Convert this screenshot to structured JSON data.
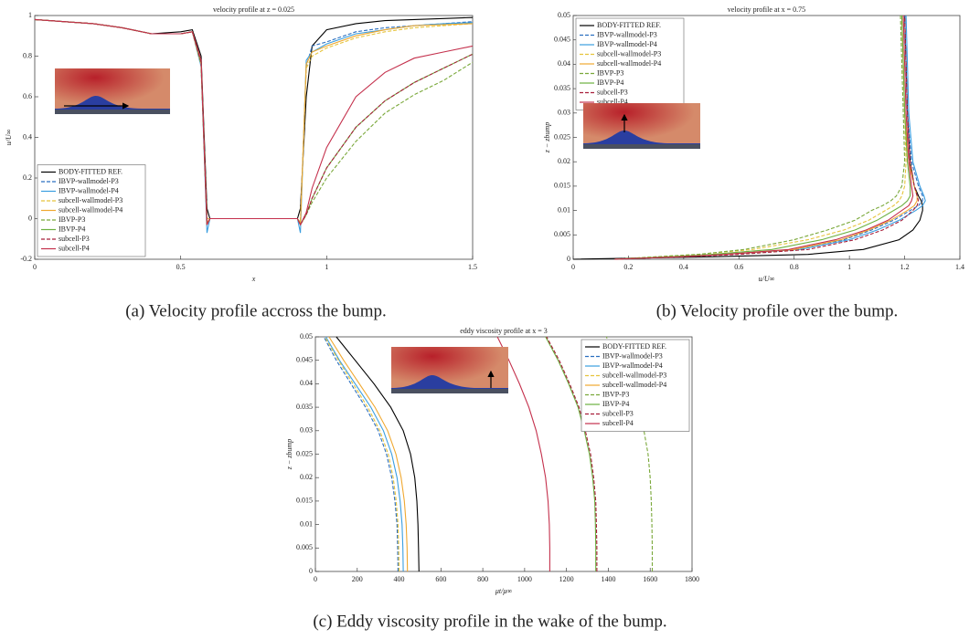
{
  "chart_data": [
    {
      "type": "line",
      "title": "velocity profile at z = 0.025",
      "caption": "(a) Velocity profile accross the bump.",
      "x_label": "x",
      "y_label": "u/U∞",
      "xlim": [
        0,
        1.5
      ],
      "xticks": [
        0,
        0.5,
        1,
        1.5
      ],
      "ylim": [
        -0.2,
        1
      ],
      "yticks": [
        -0.2,
        0,
        0.2,
        0.4,
        0.6,
        0.8,
        1
      ],
      "legend": "lower left",
      "x": [
        0,
        0.1,
        0.2,
        0.3,
        0.4,
        0.5,
        0.54,
        0.57,
        0.59,
        0.6,
        0.7,
        0.8,
        0.9,
        0.91,
        0.93,
        0.95,
        1.0,
        1.1,
        1.2,
        1.3,
        1.4,
        1.5
      ],
      "series": [
        {
          "name": "BODY-FITTED REF.",
          "color": "#000000",
          "dash": false,
          "values": [
            0.98,
            0.97,
            0.96,
            0.94,
            0.91,
            0.92,
            0.93,
            0.8,
            0.05,
            0,
            0,
            0,
            0,
            0.05,
            0.6,
            0.85,
            0.93,
            0.96,
            0.975,
            0.98,
            0.985,
            0.99
          ]
        },
        {
          "name": "IBVP-wallmodel-P3",
          "color": "#2b6fc0",
          "dash": true,
          "values": [
            0.98,
            0.97,
            0.96,
            0.94,
            0.91,
            0.91,
            0.92,
            0.75,
            0,
            0,
            0,
            0,
            0,
            -0.02,
            0.75,
            0.85,
            0.87,
            0.92,
            0.94,
            0.95,
            0.96,
            0.97
          ]
        },
        {
          "name": "IBVP-wallmodel-P4",
          "color": "#3a9ee0",
          "dash": false,
          "values": [
            0.98,
            0.97,
            0.96,
            0.94,
            0.91,
            0.91,
            0.92,
            0.75,
            -0.07,
            0,
            0,
            0,
            0,
            -0.07,
            0.78,
            0.82,
            0.86,
            0.91,
            0.93,
            0.95,
            0.96,
            0.965
          ]
        },
        {
          "name": "subcell-wallmodel-P3",
          "color": "#e6c43c",
          "dash": true,
          "values": [
            0.98,
            0.97,
            0.96,
            0.94,
            0.91,
            0.91,
            0.92,
            0.76,
            0,
            0,
            0,
            0,
            0,
            -0.02,
            0.74,
            0.8,
            0.84,
            0.89,
            0.92,
            0.94,
            0.95,
            0.96
          ]
        },
        {
          "name": "subcell-wallmodel-P4",
          "color": "#f0a830",
          "dash": false,
          "values": [
            0.98,
            0.97,
            0.96,
            0.94,
            0.91,
            0.91,
            0.92,
            0.76,
            -0.02,
            0,
            0,
            0,
            0,
            -0.03,
            0.76,
            0.82,
            0.85,
            0.9,
            0.93,
            0.95,
            0.955,
            0.96
          ]
        },
        {
          "name": "IBVP-P3",
          "color": "#7aa83a",
          "dash": true,
          "values": [
            0.98,
            0.97,
            0.96,
            0.94,
            0.91,
            0.91,
            0.92,
            0.76,
            -0.03,
            0,
            0,
            0,
            0,
            -0.03,
            0.02,
            0.08,
            0.2,
            0.38,
            0.52,
            0.61,
            0.68,
            0.77
          ]
        },
        {
          "name": "IBVP-P4",
          "color": "#6cb040",
          "dash": false,
          "values": [
            0.98,
            0.97,
            0.96,
            0.94,
            0.91,
            0.91,
            0.92,
            0.77,
            -0.03,
            0,
            0,
            0,
            0,
            -0.03,
            0.02,
            0.1,
            0.25,
            0.45,
            0.58,
            0.67,
            0.74,
            0.81
          ]
        },
        {
          "name": "subcell-P3",
          "color": "#a81e3a",
          "dash": true,
          "values": [
            0.98,
            0.97,
            0.96,
            0.94,
            0.91,
            0.91,
            0.92,
            0.77,
            -0.03,
            0,
            0,
            0,
            0,
            -0.03,
            0.02,
            0.1,
            0.25,
            0.45,
            0.58,
            0.67,
            0.74,
            0.81
          ]
        },
        {
          "name": "subcell-P4",
          "color": "#c4304c",
          "dash": false,
          "values": [
            0.98,
            0.97,
            0.96,
            0.94,
            0.91,
            0.91,
            0.92,
            0.78,
            -0.03,
            0,
            0,
            0,
            0,
            -0.03,
            0.03,
            0.15,
            0.35,
            0.6,
            0.72,
            0.79,
            0.82,
            0.85
          ]
        }
      ]
    },
    {
      "type": "line",
      "title": "velocity profile at x = 0.75",
      "caption": "(b) Velocity profile over the bump.",
      "x_label": "u/U∞",
      "y_label": "z − zbump",
      "xlim": [
        0,
        1.4
      ],
      "xticks": [
        0,
        0.2,
        0.4,
        0.6,
        0.8,
        1,
        1.2,
        1.4
      ],
      "ylim": [
        0,
        0.05
      ],
      "yticks": [
        0,
        0.005,
        0.01,
        0.015,
        0.02,
        0.025,
        0.03,
        0.035,
        0.04,
        0.045,
        0.05
      ],
      "legend": "upper left",
      "y": [
        0,
        0.0005,
        0.001,
        0.002,
        0.004,
        0.006,
        0.008,
        0.01,
        0.011,
        0.012,
        0.013,
        0.015,
        0.02,
        0.03,
        0.04,
        0.05
      ],
      "series": [
        {
          "name": "BODY-FITTED REF.",
          "color": "#000000",
          "dash": false,
          "values": [
            0,
            0.5,
            0.85,
            1.05,
            1.18,
            1.23,
            1.255,
            1.265,
            1.265,
            1.26,
            1.25,
            1.235,
            1.22,
            1.21,
            1.205,
            1.2
          ]
        },
        {
          "name": "IBVP-wallmodel-P3",
          "color": "#2b6fc0",
          "dash": true,
          "values": [
            0.15,
            0.35,
            0.55,
            0.8,
            0.98,
            1.08,
            1.16,
            1.22,
            1.25,
            1.265,
            1.265,
            1.25,
            1.225,
            1.21,
            1.205,
            1.2
          ]
        },
        {
          "name": "IBVP-wallmodel-P4",
          "color": "#3a9ee0",
          "dash": false,
          "values": [
            0.15,
            0.35,
            0.55,
            0.82,
            1,
            1.1,
            1.18,
            1.24,
            1.265,
            1.275,
            1.27,
            1.255,
            1.23,
            1.215,
            1.21,
            1.205
          ]
        },
        {
          "name": "subcell-wallmodel-P3",
          "color": "#e6c43c",
          "dash": true,
          "values": [
            0.15,
            0.3,
            0.45,
            0.65,
            0.85,
            0.98,
            1.07,
            1.13,
            1.16,
            1.18,
            1.19,
            1.2,
            1.205,
            1.2,
            1.195,
            1.19
          ]
        },
        {
          "name": "subcell-wallmodel-P4",
          "color": "#f0a830",
          "dash": false,
          "values": [
            0.15,
            0.35,
            0.55,
            0.8,
            0.97,
            1.07,
            1.15,
            1.21,
            1.235,
            1.245,
            1.245,
            1.235,
            1.215,
            1.2,
            1.195,
            1.19
          ]
        },
        {
          "name": "IBVP-P3",
          "color": "#7aa83a",
          "dash": true,
          "values": [
            0.15,
            0.3,
            0.45,
            0.62,
            0.8,
            0.92,
            1.02,
            1.08,
            1.12,
            1.15,
            1.17,
            1.19,
            1.2,
            1.195,
            1.19,
            1.185
          ]
        },
        {
          "name": "IBVP-P4",
          "color": "#6cb040",
          "dash": false,
          "values": [
            0.15,
            0.35,
            0.5,
            0.72,
            0.9,
            1.02,
            1.1,
            1.16,
            1.19,
            1.21,
            1.22,
            1.22,
            1.21,
            1.2,
            1.195,
            1.19
          ]
        },
        {
          "name": "subcell-P3",
          "color": "#a81e3a",
          "dash": true,
          "values": [
            0.15,
            0.4,
            0.6,
            0.85,
            1.02,
            1.12,
            1.19,
            1.23,
            1.245,
            1.25,
            1.245,
            1.235,
            1.22,
            1.21,
            1.205,
            1.2
          ]
        },
        {
          "name": "subcell-P4",
          "color": "#c4304c",
          "dash": false,
          "values": [
            0.15,
            0.38,
            0.55,
            0.78,
            0.95,
            1.06,
            1.14,
            1.19,
            1.215,
            1.225,
            1.23,
            1.225,
            1.215,
            1.205,
            1.2,
            1.195
          ]
        }
      ]
    },
    {
      "type": "line",
      "title": "eddy viscosity profile at x = 3",
      "caption": "(c) Eddy viscosity profile in the wake of the bump.",
      "x_label": "μt/μ∞",
      "y_label": "z − zbump",
      "xlim": [
        0,
        1800
      ],
      "xticks": [
        0,
        200,
        400,
        600,
        800,
        1000,
        1200,
        1400,
        1600,
        1800
      ],
      "ylim": [
        0,
        0.05
      ],
      "yticks": [
        0,
        0.005,
        0.01,
        0.015,
        0.02,
        0.025,
        0.03,
        0.035,
        0.04,
        0.045,
        0.05
      ],
      "legend": "upper right",
      "y": [
        0,
        0.005,
        0.01,
        0.015,
        0.02,
        0.025,
        0.03,
        0.035,
        0.04,
        0.045,
        0.05
      ],
      "series": [
        {
          "name": "BODY-FITTED REF.",
          "color": "#000000",
          "dash": false,
          "values": [
            495,
            493,
            490,
            485,
            475,
            455,
            420,
            360,
            280,
            190,
            100
          ]
        },
        {
          "name": "IBVP-wallmodel-P3",
          "color": "#2b6fc0",
          "dash": true,
          "values": [
            395,
            393,
            390,
            380,
            365,
            340,
            300,
            240,
            170,
            100,
            40
          ]
        },
        {
          "name": "IBVP-wallmodel-P4",
          "color": "#3a9ee0",
          "dash": false,
          "values": [
            420,
            418,
            414,
            405,
            390,
            365,
            325,
            265,
            190,
            115,
            50
          ]
        },
        {
          "name": "subcell-wallmodel-P3",
          "color": "#e6c43c",
          "dash": true,
          "values": [
            400,
            398,
            395,
            386,
            372,
            348,
            308,
            250,
            180,
            110,
            45
          ]
        },
        {
          "name": "subcell-wallmodel-P4",
          "color": "#f0a830",
          "dash": false,
          "values": [
            440,
            438,
            434,
            425,
            410,
            385,
            345,
            285,
            210,
            135,
            65
          ]
        },
        {
          "name": "IBVP-P3",
          "color": "#7aa83a",
          "dash": true,
          "values": [
            1610,
            1610,
            1608,
            1605,
            1600,
            1590,
            1570,
            1540,
            1500,
            1450,
            1390
          ]
        },
        {
          "name": "IBVP-P4",
          "color": "#6cb040",
          "dash": false,
          "values": [
            1340,
            1340,
            1338,
            1335,
            1325,
            1310,
            1285,
            1255,
            1210,
            1160,
            1100
          ]
        },
        {
          "name": "subcell-P3",
          "color": "#a81e3a",
          "dash": true,
          "values": [
            1345,
            1345,
            1343,
            1340,
            1330,
            1315,
            1290,
            1260,
            1215,
            1165,
            1105
          ]
        },
        {
          "name": "subcell-P4",
          "color": "#c4304c",
          "dash": false,
          "values": [
            1120,
            1120,
            1118,
            1112,
            1100,
            1080,
            1055,
            1020,
            975,
            925,
            870
          ]
        }
      ]
    }
  ]
}
